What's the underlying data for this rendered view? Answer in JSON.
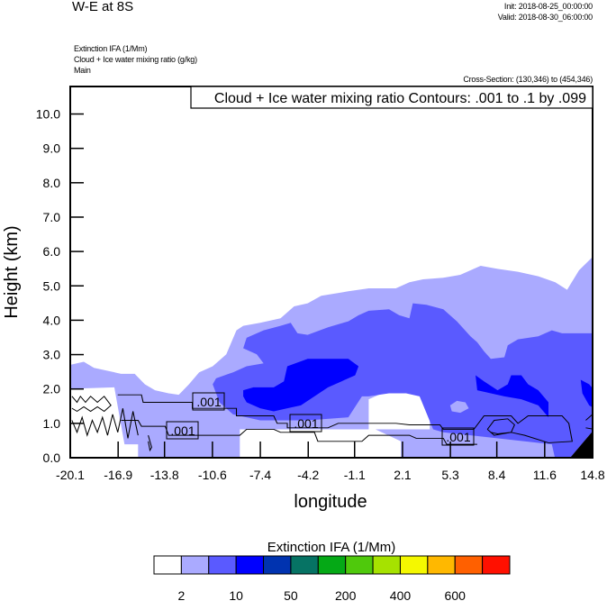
{
  "header": {
    "title": "W-E at 8S",
    "init": "Init: 2018-08-25_00:00:00",
    "valid": "Valid: 2018-08-30_06:00:00",
    "fields": [
      "Extinction IFA   (1/Mm)",
      "Cloud + Ice water mixing ratio    (g/kg)",
      "Main"
    ],
    "cross_section": "Cross-Section: (130,346) to (454,346)"
  },
  "chart_data": {
    "type": "heatmap",
    "title": "W-E at 8S",
    "xlabel": "longitude",
    "ylabel": "Height (km)",
    "xlim": [
      -20.1,
      14.8
    ],
    "ylim": [
      0,
      10.8
    ],
    "x_ticks": [
      "-20.1",
      "-16.9",
      "-13.8",
      "-10.6",
      "-7.4",
      "-4.2",
      "-1.1",
      "2.1",
      "5.3",
      "8.4",
      "11.6",
      "14.8"
    ],
    "y_ticks": [
      "0.0",
      "1.0",
      "2.0",
      "3.0",
      "4.0",
      "5.0",
      "6.0",
      "7.0",
      "8.0",
      "9.0",
      "10.0"
    ],
    "contour_legend": "Cloud + Ice water mixing ratio Contours: .001 to .1 by .099",
    "contour_labels": [
      ".001",
      ".001",
      ".001",
      ".001"
    ],
    "colorbar": {
      "title": "Extinction IFA  (1/Mm)",
      "colors": [
        "#ffffff",
        "#aaaaff",
        "#5a5aff",
        "#0000ff",
        "#0033b0",
        "#067364",
        "#05a916",
        "#4fc90c",
        "#a6e200",
        "#f5f800",
        "#ffb800",
        "#ff6000",
        "#ff1000"
      ],
      "labels": [
        "2",
        "10",
        "50",
        "200",
        "400",
        "600"
      ]
    },
    "filled_levels_present": [
      "2-5 (light blue)",
      "5-10 (medium blue)",
      "10-20 (blue)"
    ]
  }
}
